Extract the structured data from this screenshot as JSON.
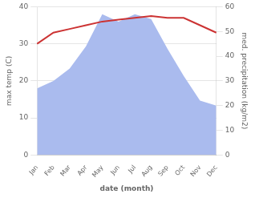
{
  "chart_data": {
    "type": "line",
    "categories": [
      "Jan",
      "Feb",
      "Mar",
      "Apr",
      "May",
      "Jun",
      "Jul",
      "Aug",
      "Sep",
      "Oct",
      "Nov",
      "Dec"
    ],
    "series": [
      {
        "type": "area",
        "color": "#aabbee",
        "axis": "y2",
        "values": [
          27,
          30,
          35,
          44,
          57,
          54,
          57,
          55,
          43,
          32,
          22,
          20
        ]
      },
      {
        "type": "line",
        "color": "#cc3333",
        "values": [
          30,
          33,
          34,
          35,
          36,
          36.5,
          37,
          37.5,
          37,
          37,
          35,
          33
        ]
      }
    ],
    "xlabel": "date (month)",
    "ylabel": "max temp (C)",
    "y2label": "med. precipitation (kg/m2)",
    "ylim": [
      0,
      40
    ],
    "yticks": [
      0,
      10,
      20,
      30,
      40
    ],
    "y2lim": [
      0,
      60
    ],
    "y2ticks": [
      0,
      10,
      20,
      30,
      40,
      50,
      60
    ],
    "grid": true
  }
}
